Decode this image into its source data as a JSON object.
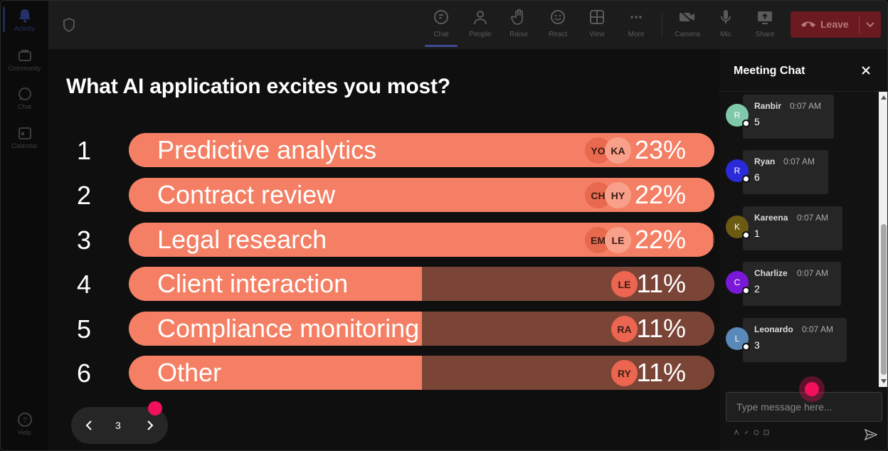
{
  "rail": {
    "items": [
      {
        "label": "Activity",
        "icon": "bell-icon"
      },
      {
        "label": "Community",
        "icon": "community-icon"
      },
      {
        "label": "Chat",
        "icon": "chat-icon"
      },
      {
        "label": "Calendar",
        "icon": "calendar-icon"
      }
    ],
    "help": "Help"
  },
  "toolbar": {
    "chat": "Chat",
    "people": "People",
    "raise": "Raise",
    "react": "React",
    "view": "View",
    "more": "More",
    "camera": "Camera",
    "mic": "Mic",
    "share": "Share",
    "leave": "Leave"
  },
  "poll": {
    "question": "What AI application excites you most?",
    "options": [
      {
        "rank": "1",
        "label": "Predictive analytics",
        "percent": "23%",
        "fill": 1.0,
        "avatars": [
          "YO",
          "KA"
        ]
      },
      {
        "rank": "2",
        "label": "Contract review",
        "percent": "22%",
        "fill": 1.0,
        "avatars": [
          "CH",
          "HY"
        ]
      },
      {
        "rank": "3",
        "label": "Legal research",
        "percent": "22%",
        "fill": 0.997,
        "avatars": [
          "EM",
          "LE"
        ]
      },
      {
        "rank": "4",
        "label": "Client interaction",
        "percent": "11%",
        "fill": 0.5,
        "avatars": [
          "LE"
        ]
      },
      {
        "rank": "5",
        "label": "Compliance monitoring",
        "percent": "11%",
        "fill": 0.5,
        "avatars": [
          "RA"
        ]
      },
      {
        "rank": "6",
        "label": "Other",
        "percent": "11%",
        "fill": 0.5,
        "avatars": [
          "RY"
        ]
      }
    ]
  },
  "pager": {
    "page": "3"
  },
  "chat": {
    "title": "Meeting Chat",
    "messages": [
      {
        "initial": "R",
        "name": "Ranbir",
        "time": "0:07 AM",
        "text": "5",
        "color": "#7fc8a9"
      },
      {
        "initial": "R",
        "name": "Ryan",
        "time": "0:07 AM",
        "text": "6",
        "color": "#2a2ad8"
      },
      {
        "initial": "K",
        "name": "Kareena",
        "time": "0:07 AM",
        "text": "1",
        "color": "#6b5a12"
      },
      {
        "initial": "C",
        "name": "Charlize",
        "time": "0:07 AM",
        "text": "2",
        "color": "#7a18d8"
      },
      {
        "initial": "L",
        "name": "Leonardo",
        "time": "0:07 AM",
        "text": "3",
        "color": "#5a88b8"
      }
    ],
    "input_placeholder": "Type message here..."
  },
  "colors": {
    "bar_fill": "#f47f64",
    "bar_track": "#7a4536",
    "accent": "#f0105e",
    "leave": "#6b1a20"
  }
}
